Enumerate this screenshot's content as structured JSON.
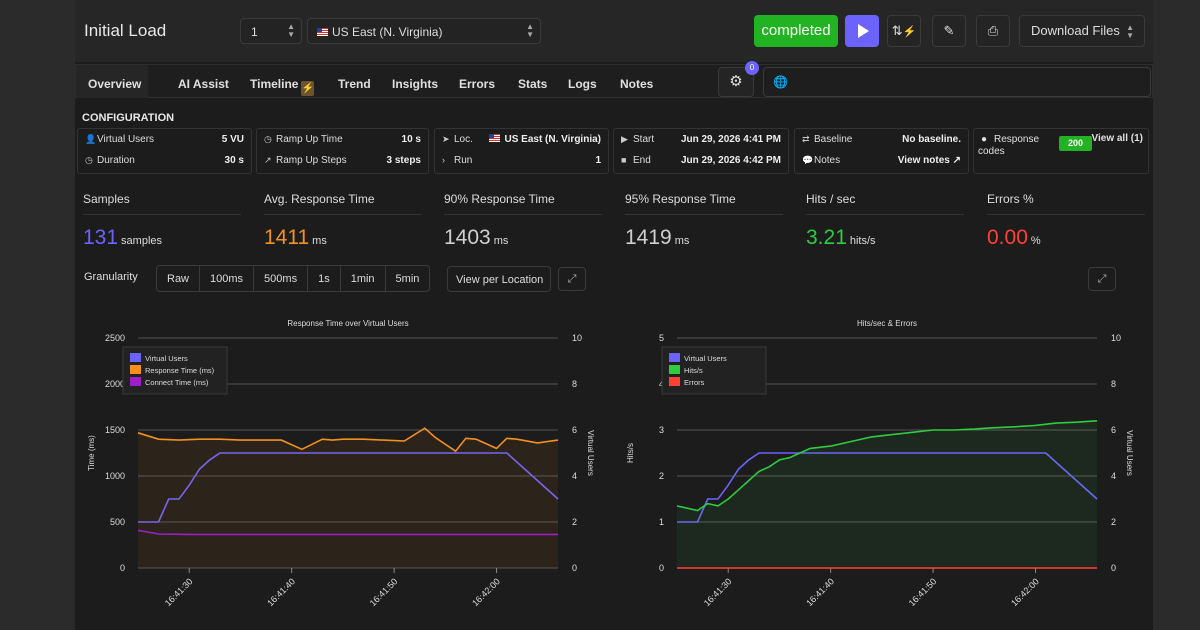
{
  "header": {
    "title": "Initial Load",
    "run_number": "1",
    "region": "US East (N. Virginia)",
    "status": "completed",
    "download_label": "Download Files",
    "icons": [
      "play-icon",
      "compare-bolt-icon",
      "edit-pencil-icon",
      "print-icon"
    ]
  },
  "tabs": {
    "items": [
      "Overview",
      "AI Assist",
      "Timeline",
      "Trend",
      "Insights",
      "Errors",
      "Stats",
      "Logs",
      "Notes"
    ],
    "active": "Overview",
    "settings_badge": "0"
  },
  "config": {
    "title": "CONFIGURATION",
    "virtual_users_label": "Virtual Users",
    "virtual_users": "5 VU",
    "duration_label": "Duration",
    "duration": "30 s",
    "ramp_up_time_label": "Ramp Up Time",
    "ramp_up_time": "10 s",
    "ramp_up_steps_label": "Ramp Up Steps",
    "ramp_up_steps": "3 steps",
    "loc_label": "Loc.",
    "loc": "US East (N. Virginia)",
    "run_label": "Run",
    "run": "1",
    "start_label": "Start",
    "start": "Jun 29, 2026 4:41 PM",
    "end_label": "End",
    "end": "Jun 29, 2026 4:42 PM",
    "baseline_label": "Baseline",
    "baseline": "No baseline.",
    "notes_label": "Notes",
    "notes_link": "View notes",
    "response_codes_label": "Response codes",
    "response_code": "200",
    "view_all": "View all (1)"
  },
  "metrics": [
    {
      "label": "Samples",
      "value": "131",
      "unit": "samples",
      "color": "#6c63ff"
    },
    {
      "label": "Avg. Response Time",
      "value": "1411",
      "unit": "ms",
      "color": "#f5901e"
    },
    {
      "label": "90% Response Time",
      "value": "1403",
      "unit": "ms",
      "color": "#cfcfcf"
    },
    {
      "label": "95% Response Time",
      "value": "1419",
      "unit": "ms",
      "color": "#cfcfcf"
    },
    {
      "label": "Hits / sec",
      "value": "3.21",
      "unit": "hits/s",
      "color": "#2ecc40"
    },
    {
      "label": "Errors %",
      "value": "0.00",
      "unit": "%",
      "color": "#ff4136"
    }
  ],
  "granularity": {
    "label": "Granularity",
    "options": [
      "Raw",
      "100ms",
      "500ms",
      "1s",
      "1min",
      "5min"
    ],
    "view_per_location": "View per Location"
  },
  "chart_data": [
    {
      "type": "line",
      "title": "Response Time over Virtual Users",
      "ylabel": "Time (ms)",
      "y2label": "Virtual Users",
      "ylim": [
        0,
        2500
      ],
      "y2lim": [
        0,
        10
      ],
      "yticks": [
        0,
        500,
        1000,
        1500,
        2000,
        2500
      ],
      "y2ticks": [
        0,
        2,
        4,
        6,
        8,
        10
      ],
      "xticks": [
        "16:41:30",
        "16:41:40",
        "16:41:50",
        "16:42:00"
      ],
      "xrange_seconds": [
        -5,
        36
      ],
      "legend_position": "top-left",
      "series": [
        {
          "name": "Virtual Users",
          "color": "#6c63ff",
          "axis": "right",
          "x": [
            -5,
            -3,
            -2,
            -1,
            0,
            1,
            2,
            3,
            30,
            31,
            36
          ],
          "values": [
            2,
            2,
            3,
            3,
            3.6,
            4.3,
            4.7,
            5,
            5,
            5,
            3
          ]
        },
        {
          "name": "Response Time (ms)",
          "color": "#f5901e",
          "axis": "left",
          "area": true,
          "x": [
            -5,
            -3,
            -1,
            1,
            3,
            5,
            7,
            9,
            11,
            13,
            14,
            15,
            17,
            19,
            21,
            23,
            24,
            26,
            27,
            28,
            30,
            31,
            32,
            34,
            36
          ],
          "values": [
            1470,
            1400,
            1390,
            1400,
            1400,
            1390,
            1390,
            1390,
            1290,
            1400,
            1390,
            1400,
            1400,
            1390,
            1380,
            1520,
            1420,
            1270,
            1410,
            1400,
            1300,
            1410,
            1400,
            1360,
            1390
          ]
        },
        {
          "name": "Connect Time (ms)",
          "color": "#9b1fc8",
          "axis": "left",
          "x": [
            -5,
            -3,
            0,
            10,
            20,
            30,
            36
          ],
          "values": [
            410,
            370,
            365,
            365,
            365,
            365,
            365
          ]
        }
      ]
    },
    {
      "type": "line",
      "title": "Hits/sec & Errors",
      "ylabel": "Hits/s",
      "y2label": "Virtual Users",
      "ylim": [
        0,
        5
      ],
      "y2lim": [
        0,
        10
      ],
      "yticks": [
        0,
        1,
        2,
        3,
        4,
        5
      ],
      "y2ticks": [
        0,
        2,
        4,
        6,
        8,
        10
      ],
      "xticks": [
        "16:41:30",
        "16:41:40",
        "16:41:50",
        "16:42:00"
      ],
      "xrange_seconds": [
        -5,
        36
      ],
      "legend_position": "top-left",
      "series": [
        {
          "name": "Virtual Users",
          "color": "#6c63ff",
          "axis": "right",
          "x": [
            -5,
            -3,
            -2,
            -1,
            0,
            1,
            2,
            3,
            30,
            31,
            36
          ],
          "values": [
            2,
            2,
            3,
            3,
            3.6,
            4.3,
            4.7,
            5,
            5,
            5,
            3
          ]
        },
        {
          "name": "Hits/s",
          "color": "#2ecc40",
          "axis": "left",
          "area": true,
          "x": [
            -5,
            -3,
            -2,
            -1,
            0,
            1,
            2,
            3,
            4,
            5,
            6,
            7,
            8,
            10,
            12,
            14,
            16,
            18,
            20,
            22,
            24,
            26,
            28,
            30,
            32,
            34,
            36
          ],
          "values": [
            1.35,
            1.25,
            1.4,
            1.35,
            1.5,
            1.7,
            1.9,
            2.1,
            2.2,
            2.35,
            2.4,
            2.5,
            2.6,
            2.65,
            2.75,
            2.85,
            2.9,
            2.95,
            3.0,
            3.0,
            3.02,
            3.05,
            3.07,
            3.1,
            3.15,
            3.17,
            3.2
          ]
        },
        {
          "name": "Errors",
          "color": "#ff4136",
          "axis": "left",
          "x": [
            -5,
            36
          ],
          "values": [
            0,
            0
          ]
        }
      ]
    }
  ]
}
